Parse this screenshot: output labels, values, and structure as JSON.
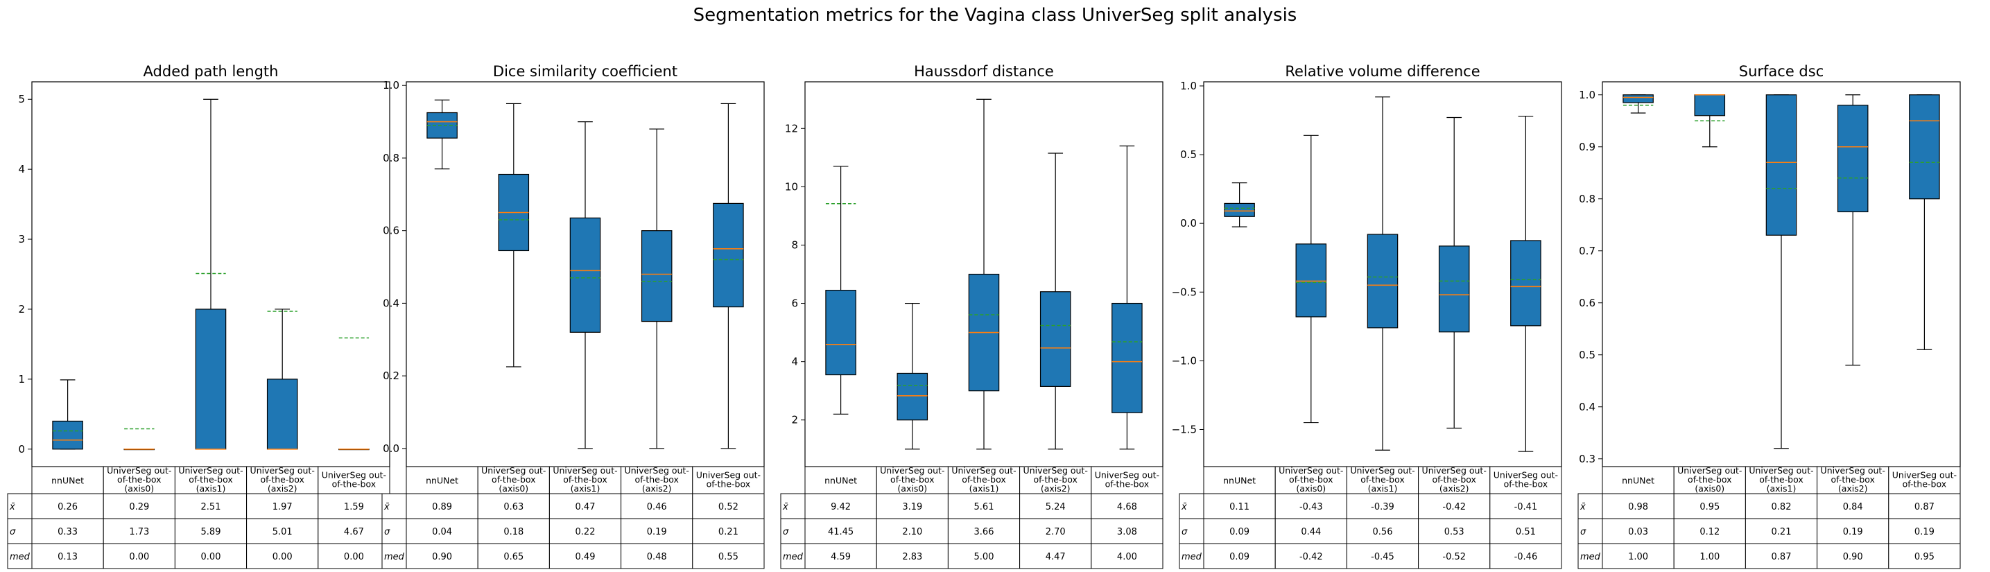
{
  "figure": {
    "title": "Segmentation metrics for the Vagina class UniverSeg split analysis",
    "colors": {
      "box": "#1f77b4",
      "median": "#ff7f0e",
      "mean": "#2ca02c",
      "edge": "#000000"
    }
  },
  "table_rows": [
    "x̄",
    "σ",
    "med"
  ],
  "chart_data": [
    {
      "type": "box",
      "title": "Added path length",
      "categories": [
        [
          "nnUNet"
        ],
        [
          "UniverSeg out-",
          "of-the-box",
          "(axis0)"
        ],
        [
          "UniverSeg out-",
          "of-the-box",
          "(axis1)"
        ],
        [
          "UniverSeg out-",
          "of-the-box",
          "(axis2)"
        ],
        [
          "UniverSeg out-",
          "of-the-box"
        ]
      ],
      "ylim": [
        -0.25,
        5.25
      ],
      "yticks": [
        0,
        1,
        2,
        3,
        4,
        5
      ],
      "ytick_labels": [
        "0",
        "1",
        "2",
        "3",
        "4",
        "5"
      ],
      "boxes": [
        {
          "whislo": 0,
          "q1": 0,
          "med": 0.13,
          "q3": 0.4,
          "whishi": 0.99,
          "mean": 0.26
        },
        {
          "whislo": 0,
          "q1": 0,
          "med": 0,
          "q3": 0,
          "whishi": 0,
          "mean": 0.29
        },
        {
          "whislo": 0,
          "q1": 0,
          "med": 0,
          "q3": 2.0,
          "whishi": 5.0,
          "mean": 2.51
        },
        {
          "whislo": 0,
          "q1": 0,
          "med": 0,
          "q3": 1.0,
          "whishi": 2.0,
          "mean": 1.97
        },
        {
          "whislo": 0,
          "q1": 0,
          "med": 0,
          "q3": 0,
          "whishi": 0,
          "mean": 1.59
        }
      ],
      "table": [
        [
          "0.26",
          "0.29",
          "2.51",
          "1.97",
          "1.59"
        ],
        [
          "0.33",
          "1.73",
          "5.89",
          "5.01",
          "4.67"
        ],
        [
          "0.13",
          "0.00",
          "0.00",
          "0.00",
          "0.00"
        ]
      ]
    },
    {
      "type": "box",
      "title": "Dice similarity coefficient",
      "categories": [
        [
          "nnUNet"
        ],
        [
          "UniverSeg out-",
          "of-the-box",
          "(axis0)"
        ],
        [
          "UniverSeg out-",
          "of-the-box",
          "(axis1)"
        ],
        [
          "UniverSeg out-",
          "of-the-box",
          "(axis2)"
        ],
        [
          "UniverSeg out-",
          "of-the-box"
        ]
      ],
      "ylim": [
        -0.05,
        1.01
      ],
      "yticks": [
        0,
        0.2,
        0.4,
        0.6,
        0.8,
        1.0
      ],
      "ytick_labels": [
        "0.0",
        "0.2",
        "0.4",
        "0.6",
        "0.8",
        "1.0"
      ],
      "boxes": [
        {
          "whislo": 0.77,
          "q1": 0.855,
          "med": 0.9,
          "q3": 0.925,
          "whishi": 0.96,
          "mean": 0.89
        },
        {
          "whislo": 0.225,
          "q1": 0.545,
          "med": 0.65,
          "q3": 0.755,
          "whishi": 0.95,
          "mean": 0.63
        },
        {
          "whislo": 0,
          "q1": 0.32,
          "med": 0.49,
          "q3": 0.635,
          "whishi": 0.9,
          "mean": 0.47
        },
        {
          "whislo": 0,
          "q1": 0.35,
          "med": 0.48,
          "q3": 0.6,
          "whishi": 0.88,
          "mean": 0.46
        },
        {
          "whislo": 0,
          "q1": 0.39,
          "med": 0.55,
          "q3": 0.675,
          "whishi": 0.95,
          "mean": 0.52
        }
      ],
      "table": [
        [
          "0.89",
          "0.63",
          "0.47",
          "0.46",
          "0.52"
        ],
        [
          "0.04",
          "0.18",
          "0.22",
          "0.19",
          "0.21"
        ],
        [
          "0.90",
          "0.65",
          "0.49",
          "0.48",
          "0.55"
        ]
      ]
    },
    {
      "type": "box",
      "title": "Haussdorf distance",
      "categories": [
        [
          "nnUNet"
        ],
        [
          "UniverSeg out-",
          "of-the-box",
          "(axis0)"
        ],
        [
          "UniverSeg out-",
          "of-the-box",
          "(axis1)"
        ],
        [
          "UniverSeg out-",
          "of-the-box",
          "(axis2)"
        ],
        [
          "UniverSeg out-",
          "of-the-box"
        ]
      ],
      "ylim": [
        0.4,
        13.6
      ],
      "yticks": [
        2,
        4,
        6,
        8,
        10,
        12
      ],
      "ytick_labels": [
        "2",
        "4",
        "6",
        "8",
        "10",
        "12"
      ],
      "boxes": [
        {
          "whislo": 2.2,
          "q1": 3.55,
          "med": 4.59,
          "q3": 6.45,
          "whishi": 10.7,
          "mean": 9.42
        },
        {
          "whislo": 1.0,
          "q1": 2.0,
          "med": 2.83,
          "q3": 3.6,
          "whishi": 6.0,
          "mean": 3.19
        },
        {
          "whislo": 1.0,
          "q1": 3.0,
          "med": 5.0,
          "q3": 7.0,
          "whishi": 13.0,
          "mean": 5.61
        },
        {
          "whislo": 1.0,
          "q1": 3.15,
          "med": 4.47,
          "q3": 6.4,
          "whishi": 11.15,
          "mean": 5.24
        },
        {
          "whislo": 1.0,
          "q1": 2.25,
          "med": 4.0,
          "q3": 6.0,
          "whishi": 11.4,
          "mean": 4.68
        }
      ],
      "table": [
        [
          "9.42",
          "3.19",
          "5.61",
          "5.24",
          "4.68"
        ],
        [
          "41.45",
          "2.10",
          "3.66",
          "2.70",
          "3.08"
        ],
        [
          "4.59",
          "2.83",
          "5.00",
          "4.47",
          "4.00"
        ]
      ]
    },
    {
      "type": "box",
      "title": "Relative volume difference",
      "categories": [
        [
          "nnUNet"
        ],
        [
          "UniverSeg out-",
          "of-the-box",
          "(axis0)"
        ],
        [
          "UniverSeg out-",
          "of-the-box",
          "(axis1)"
        ],
        [
          "UniverSeg out-",
          "of-the-box",
          "(axis2)"
        ],
        [
          "UniverSeg out-",
          "of-the-box"
        ]
      ],
      "ylim": [
        -1.77,
        1.03
      ],
      "yticks": [
        -1.5,
        -1.0,
        -0.5,
        0.0,
        0.5,
        1.0
      ],
      "ytick_labels": [
        "−1.5",
        "−1.0",
        "−0.5",
        "0.0",
        "0.5",
        "1.0"
      ],
      "boxes": [
        {
          "whislo": -0.025,
          "q1": 0.05,
          "med": 0.09,
          "q3": 0.145,
          "whishi": 0.295,
          "mean": 0.11
        },
        {
          "whislo": -1.45,
          "q1": -0.68,
          "med": -0.42,
          "q3": -0.15,
          "whishi": 0.64,
          "mean": -0.43
        },
        {
          "whislo": -1.65,
          "q1": -0.76,
          "med": -0.45,
          "q3": -0.08,
          "whishi": 0.92,
          "mean": -0.39
        },
        {
          "whislo": -1.49,
          "q1": -0.79,
          "med": -0.52,
          "q3": -0.165,
          "whishi": 0.77,
          "mean": -0.42
        },
        {
          "whislo": -1.66,
          "q1": -0.745,
          "med": -0.46,
          "q3": -0.125,
          "whishi": 0.78,
          "mean": -0.41
        }
      ],
      "table": [
        [
          "0.11",
          "-0.43",
          "-0.39",
          "-0.42",
          "-0.41"
        ],
        [
          "0.09",
          "0.44",
          "0.56",
          "0.53",
          "0.51"
        ],
        [
          "0.09",
          "-0.42",
          "-0.45",
          "-0.52",
          "-0.46"
        ]
      ]
    },
    {
      "type": "box",
      "title": "Surface dsc",
      "categories": [
        [
          "nnUNet"
        ],
        [
          "UniverSeg out-",
          "of-the-box",
          "(axis0)"
        ],
        [
          "UniverSeg out-",
          "of-the-box",
          "(axis1)"
        ],
        [
          "UniverSeg out-",
          "of-the-box",
          "(axis2)"
        ],
        [
          "UniverSeg out-",
          "of-the-box"
        ]
      ],
      "ylim": [
        0.285,
        1.025
      ],
      "yticks": [
        0.3,
        0.4,
        0.5,
        0.6,
        0.7,
        0.8,
        0.9,
        1.0
      ],
      "ytick_labels": [
        "0.3",
        "0.4",
        "0.5",
        "0.6",
        "0.7",
        "0.8",
        "0.9",
        "1.0"
      ],
      "boxes": [
        {
          "whislo": 0.965,
          "q1": 0.985,
          "med": 0.995,
          "q3": 1.0,
          "whishi": 1.0,
          "mean": 0.98
        },
        {
          "whislo": 0.9,
          "q1": 0.96,
          "med": 1.0,
          "q3": 1.0,
          "whishi": 1.0,
          "mean": 0.95
        },
        {
          "whislo": 0.32,
          "q1": 0.73,
          "med": 0.87,
          "q3": 1.0,
          "whishi": 1.0,
          "mean": 0.82
        },
        {
          "whislo": 0.48,
          "q1": 0.775,
          "med": 0.9,
          "q3": 0.98,
          "whishi": 1.0,
          "mean": 0.84
        },
        {
          "whislo": 0.51,
          "q1": 0.8,
          "med": 0.95,
          "q3": 1.0,
          "whishi": 1.0,
          "mean": 0.87
        }
      ],
      "table": [
        [
          "0.98",
          "0.95",
          "0.82",
          "0.84",
          "0.87"
        ],
        [
          "0.03",
          "0.12",
          "0.21",
          "0.19",
          "0.19"
        ],
        [
          "1.00",
          "1.00",
          "0.87",
          "0.90",
          "0.95"
        ]
      ]
    }
  ]
}
